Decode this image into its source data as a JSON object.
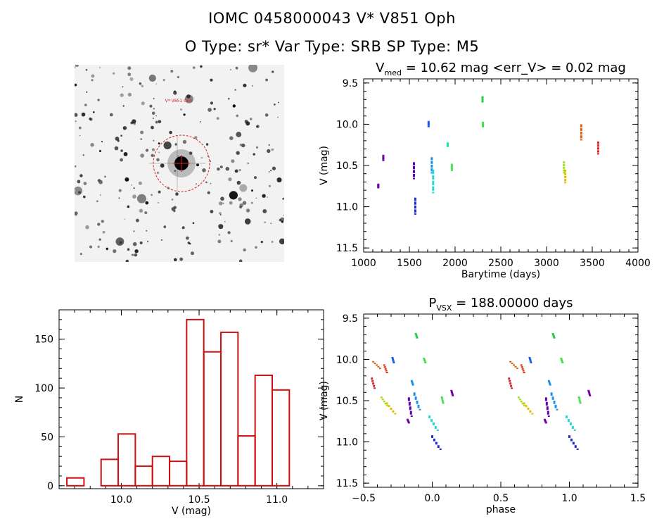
{
  "header": {
    "title_line1": "IOMC 0458000043    V* V851 Oph",
    "title_line2": "O Type: sr*  Var Type: SRB  SP Type: M5"
  },
  "image_panel": {
    "target_label": "V* V851 Oph",
    "circle_color": "#e02020"
  },
  "chart_data": [
    {
      "id": "lightcurve",
      "type": "scatter",
      "title_main": "V",
      "title_sub": "med",
      "title_rest": " = 10.62 mag <err_V> = 0.02 mag",
      "xlabel": "Barytime (days)",
      "ylabel": "V (mag)",
      "xlim": [
        1000,
        4000
      ],
      "ylim": [
        11.55,
        9.45
      ],
      "xticks": [
        1000,
        1500,
        2000,
        2500,
        3000,
        3500,
        4000
      ],
      "xtick_labels": [
        "1000",
        "1500",
        "2000",
        "2500",
        "3000",
        "3500",
        "4000"
      ],
      "yticks": [
        9.5,
        10.0,
        10.5,
        11.0,
        11.5
      ],
      "ytick_labels": [
        "9.5",
        "10.0",
        "10.5",
        "11.0",
        "11.5"
      ],
      "groups": [
        {
          "color": "#6a00a8",
          "x": 1160,
          "y": [
            10.72,
            10.76
          ]
        },
        {
          "color": "#6a00a8",
          "x": 1215,
          "y": [
            10.37,
            10.43
          ]
        },
        {
          "color": "#6000b0",
          "x": 1550,
          "y": [
            10.46,
            10.65
          ]
        },
        {
          "color": "#1a28d8",
          "x": 1565,
          "y": [
            10.89,
            11.08
          ]
        },
        {
          "color": "#1a5ae0",
          "x": 1710,
          "y": [
            9.96,
            10.02
          ]
        },
        {
          "color": "#1e90e8",
          "x": 1745,
          "y": [
            10.4,
            10.58
          ]
        },
        {
          "color": "#22d8d8",
          "x": 1760,
          "y": [
            10.55,
            10.82
          ]
        },
        {
          "color": "#22e0b0",
          "x": 1920,
          "y": [
            10.22,
            10.26
          ]
        },
        {
          "color": "#40e040",
          "x": 1965,
          "y": [
            10.48,
            10.55
          ]
        },
        {
          "color": "#20d040",
          "x": 2300,
          "y": [
            9.66,
            9.72
          ]
        },
        {
          "color": "#40e040",
          "x": 2305,
          "y": [
            9.97,
            10.02
          ]
        },
        {
          "color": "#a0e020",
          "x": 3190,
          "y": [
            10.45,
            10.58
          ]
        },
        {
          "color": "#e0c000",
          "x": 3205,
          "y": [
            10.55,
            10.7
          ]
        },
        {
          "color": "#e06010",
          "x": 3380,
          "y": [
            10.0,
            10.18
          ]
        },
        {
          "color": "#e02020",
          "x": 3565,
          "y": [
            10.21,
            10.35
          ]
        }
      ]
    },
    {
      "id": "histogram",
      "type": "bar",
      "xlabel": "V (mag)",
      "ylabel": "N",
      "xlim": [
        9.6,
        11.3
      ],
      "ylim": [
        -3,
        180
      ],
      "xticks": [
        10.0,
        10.5,
        11.0
      ],
      "xtick_labels": [
        "10.0",
        "10.5",
        "11.0"
      ],
      "yticks": [
        0,
        50,
        100,
        150
      ],
      "ytick_labels": [
        "0",
        "50",
        "100",
        "150"
      ],
      "bar_color": "#d01010",
      "bins": [
        {
          "x0": 9.65,
          "x1": 9.76,
          "n": 8
        },
        {
          "x0": 9.87,
          "x1": 9.98,
          "n": 27
        },
        {
          "x0": 9.98,
          "x1": 10.09,
          "n": 53
        },
        {
          "x0": 10.09,
          "x1": 10.2,
          "n": 20
        },
        {
          "x0": 10.2,
          "x1": 10.31,
          "n": 30
        },
        {
          "x0": 10.31,
          "x1": 10.42,
          "n": 25
        },
        {
          "x0": 10.42,
          "x1": 10.53,
          "n": 170
        },
        {
          "x0": 10.53,
          "x1": 10.64,
          "n": 137
        },
        {
          "x0": 10.64,
          "x1": 10.75,
          "n": 157
        },
        {
          "x0": 10.75,
          "x1": 10.86,
          "n": 51
        },
        {
          "x0": 10.86,
          "x1": 10.97,
          "n": 113
        },
        {
          "x0": 10.97,
          "x1": 11.08,
          "n": 98
        }
      ]
    },
    {
      "id": "phased",
      "type": "scatter",
      "title_main": "P",
      "title_sub": "VSX",
      "title_rest": " = 188.00000 days",
      "xlabel": "phase",
      "ylabel": "V (mag)",
      "xlim": [
        -0.5,
        1.5
      ],
      "ylim": [
        11.55,
        9.45
      ],
      "xticks": [
        -0.5,
        0.0,
        0.5,
        1.0,
        1.5
      ],
      "xtick_labels": [
        "−0.5",
        "0.0",
        "0.5",
        "1.0",
        "1.5"
      ],
      "yticks": [
        9.5,
        10.0,
        10.5,
        11.0,
        11.5
      ],
      "ytick_labels": [
        "9.5",
        "10.0",
        "10.5",
        "11.0",
        "11.5"
      ],
      "groups": [
        {
          "color": "#e02020",
          "x0": -0.44,
          "x1": -0.42,
          "y": [
            10.22,
            10.34
          ]
        },
        {
          "color": "#e06010",
          "x0": -0.43,
          "x1": -0.38,
          "y": [
            10.02,
            10.1
          ]
        },
        {
          "color": "#e03010",
          "x0": -0.35,
          "x1": -0.33,
          "y": [
            10.06,
            10.15
          ]
        },
        {
          "color": "#a0e020",
          "x0": -0.37,
          "x1": -0.33,
          "y": [
            10.45,
            10.55
          ]
        },
        {
          "color": "#e0c000",
          "x0": -0.33,
          "x1": -0.27,
          "y": [
            10.52,
            10.65
          ]
        },
        {
          "color": "#1a5ae0",
          "x0": -0.29,
          "x1": -0.28,
          "y": [
            9.97,
            10.03
          ]
        },
        {
          "color": "#6a00a8",
          "x0": -0.18,
          "x1": -0.17,
          "y": [
            10.72,
            10.76
          ]
        },
        {
          "color": "#1e90e8",
          "x0": -0.15,
          "x1": -0.14,
          "y": [
            10.25,
            10.3
          ]
        },
        {
          "color": "#20d040",
          "x0": -0.12,
          "x1": -0.11,
          "y": [
            9.68,
            9.73
          ]
        },
        {
          "color": "#40e040",
          "x0": -0.06,
          "x1": -0.05,
          "y": [
            9.98,
            10.03
          ]
        },
        {
          "color": "#6000b0",
          "x0": -0.17,
          "x1": -0.15,
          "y": [
            10.46,
            10.68
          ]
        },
        {
          "color": "#1e90e8",
          "x0": -0.13,
          "x1": -0.09,
          "y": [
            10.4,
            10.6
          ]
        },
        {
          "color": "#22d8d8",
          "x0": -0.02,
          "x1": 0.04,
          "y": [
            10.68,
            10.85
          ]
        },
        {
          "color": "#1a28d8",
          "x0": 0.0,
          "x1": 0.06,
          "y": [
            10.92,
            11.08
          ]
        },
        {
          "color": "#40e040",
          "x0": 0.07,
          "x1": 0.08,
          "y": [
            10.45,
            10.52
          ]
        },
        {
          "color": "#6a00a8",
          "x0": 0.14,
          "x1": 0.15,
          "y": [
            10.37,
            10.43
          ]
        },
        {
          "color": "#e02020",
          "x0": 0.56,
          "x1": 0.58,
          "y": [
            10.22,
            10.34
          ]
        },
        {
          "color": "#e06010",
          "x0": 0.57,
          "x1": 0.62,
          "y": [
            10.02,
            10.1
          ]
        },
        {
          "color": "#e03010",
          "x0": 0.65,
          "x1": 0.67,
          "y": [
            10.06,
            10.15
          ]
        },
        {
          "color": "#a0e020",
          "x0": 0.63,
          "x1": 0.67,
          "y": [
            10.45,
            10.55
          ]
        },
        {
          "color": "#e0c000",
          "x0": 0.67,
          "x1": 0.73,
          "y": [
            10.52,
            10.65
          ]
        },
        {
          "color": "#1a5ae0",
          "x0": 0.71,
          "x1": 0.72,
          "y": [
            9.97,
            10.03
          ]
        },
        {
          "color": "#6a00a8",
          "x0": 0.82,
          "x1": 0.83,
          "y": [
            10.72,
            10.76
          ]
        },
        {
          "color": "#1e90e8",
          "x0": 0.85,
          "x1": 0.86,
          "y": [
            10.25,
            10.3
          ]
        },
        {
          "color": "#20d040",
          "x0": 0.88,
          "x1": 0.89,
          "y": [
            9.68,
            9.73
          ]
        },
        {
          "color": "#40e040",
          "x0": 0.94,
          "x1": 0.95,
          "y": [
            9.98,
            10.03
          ]
        },
        {
          "color": "#6000b0",
          "x0": 0.83,
          "x1": 0.85,
          "y": [
            10.46,
            10.68
          ]
        },
        {
          "color": "#1e90e8",
          "x0": 0.87,
          "x1": 0.91,
          "y": [
            10.4,
            10.6
          ]
        },
        {
          "color": "#22d8d8",
          "x0": 0.98,
          "x1": 1.04,
          "y": [
            10.68,
            10.85
          ]
        },
        {
          "color": "#1a28d8",
          "x0": 1.0,
          "x1": 1.06,
          "y": [
            10.92,
            11.08
          ]
        },
        {
          "color": "#40e040",
          "x0": 1.07,
          "x1": 1.08,
          "y": [
            10.45,
            10.52
          ]
        },
        {
          "color": "#6a00a8",
          "x0": 1.14,
          "x1": 1.15,
          "y": [
            10.37,
            10.43
          ]
        }
      ]
    }
  ]
}
